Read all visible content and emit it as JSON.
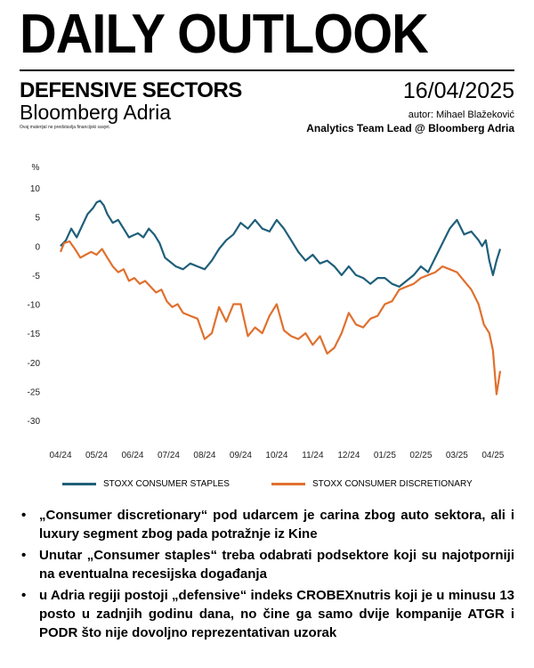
{
  "header": {
    "title": "DAILY OUTLOOK",
    "sector": "DEFENSIVE SECTORS",
    "brand": "Bloomberg Adria",
    "disclaimer": "Ovaj materijal ne predstavlja financijski savjet.",
    "date": "16/04/2025",
    "author": "autor: Mihael Blažeković",
    "role": "Analytics Team Lead @ Bloomberg Adria"
  },
  "legend": {
    "staples": "STOXX CONSUMER STAPLES",
    "discretionary": "STOXX CONSUMER DISCRETIONARY"
  },
  "bullets": [
    "„Consumer discretionary“ pod udarcem je carina zbog auto sektora, ali i luxury segment zbog pada potražnje iz Kine",
    "Unutar „Consumer staples“ treba odabrati podsektore koji su najotporniji na eventualna recesijska događanja",
    "u Adria regiji postoji „defensive“ indeks CROBEXnutris koji je u minusu 13 posto u zadnjih godinu dana, no čine ga samo dvije kompanije ATGR i PODR što nije dovoljno reprezentativan uzorak"
  ],
  "chart_data": {
    "type": "line",
    "ylabel": "%",
    "ylim": [
      -30,
      10
    ],
    "yticks": [
      10,
      5,
      0,
      -5,
      -10,
      -15,
      -20,
      -25,
      -30
    ],
    "xlim": [
      0,
      12.3
    ],
    "xticks": [
      "04/24",
      "05/24",
      "06/24",
      "07/24",
      "08/24",
      "09/24",
      "10/24",
      "11/24",
      "12/24",
      "01/25",
      "02/25",
      "03/25",
      "04/25"
    ],
    "colors": {
      "staples": "#1f5f7a",
      "discretionary": "#e0702e"
    },
    "series": [
      {
        "name": "STOXX CONSUMER STAPLES",
        "x": [
          0,
          0.15,
          0.3,
          0.45,
          0.6,
          0.75,
          0.9,
          1.0,
          1.1,
          1.2,
          1.3,
          1.45,
          1.6,
          1.75,
          1.9,
          2.0,
          2.15,
          2.3,
          2.45,
          2.6,
          2.75,
          2.9,
          3.0,
          3.2,
          3.4,
          3.6,
          3.8,
          4.0,
          4.2,
          4.4,
          4.6,
          4.8,
          5.0,
          5.2,
          5.4,
          5.6,
          5.8,
          6.0,
          6.2,
          6.4,
          6.6,
          6.8,
          7.0,
          7.2,
          7.4,
          7.6,
          7.8,
          8.0,
          8.2,
          8.4,
          8.6,
          8.8,
          9.0,
          9.2,
          9.4,
          9.6,
          9.8,
          10.0,
          10.2,
          10.4,
          10.6,
          10.8,
          11.0,
          11.2,
          11.4,
          11.6,
          11.7,
          11.8,
          11.9,
          12.0,
          12.1,
          12.2
        ],
        "y": [
          0,
          1,
          3,
          1.5,
          3.5,
          5.5,
          6.5,
          7.5,
          7.8,
          7,
          5.5,
          4,
          4.5,
          3,
          1.5,
          1.8,
          2.2,
          1.5,
          3,
          2,
          0.5,
          -2,
          -2.5,
          -3.5,
          -4,
          -3,
          -3.5,
          -4,
          -2.5,
          -0.5,
          1,
          2,
          4,
          3,
          4.5,
          3,
          2.5,
          4.5,
          3,
          1,
          -1,
          -2.5,
          -1.5,
          -3,
          -2.5,
          -3.5,
          -5,
          -3.5,
          -5,
          -5.5,
          -6.5,
          -5.5,
          -5.5,
          -6.5,
          -7,
          -6,
          -5,
          -3.5,
          -4.5,
          -2,
          0.5,
          3,
          4.5,
          2,
          2.5,
          1,
          0,
          1,
          -2.5,
          -5,
          -2.5,
          -0.5
        ]
      },
      {
        "name": "STOXX CONSUMER DISCRETIONARY",
        "x": [
          0,
          0.1,
          0.25,
          0.4,
          0.55,
          0.7,
          0.85,
          1.0,
          1.15,
          1.3,
          1.45,
          1.6,
          1.75,
          1.9,
          2.05,
          2.2,
          2.35,
          2.5,
          2.65,
          2.8,
          2.95,
          3.1,
          3.25,
          3.4,
          3.6,
          3.8,
          4.0,
          4.2,
          4.4,
          4.6,
          4.8,
          5.0,
          5.2,
          5.4,
          5.6,
          5.8,
          6.0,
          6.2,
          6.4,
          6.6,
          6.8,
          7.0,
          7.2,
          7.4,
          7.6,
          7.8,
          8.0,
          8.2,
          8.4,
          8.6,
          8.8,
          9.0,
          9.2,
          9.4,
          9.6,
          9.8,
          10.0,
          10.2,
          10.4,
          10.6,
          10.8,
          11.0,
          11.2,
          11.4,
          11.6,
          11.75,
          11.9,
          12.0,
          12.1,
          12.2
        ],
        "y": [
          -1,
          0.5,
          0.8,
          -0.5,
          -2,
          -1.5,
          -1,
          -1.5,
          -0.5,
          -2,
          -3.5,
          -4.5,
          -4,
          -6,
          -5.5,
          -6.5,
          -6,
          -7,
          -8,
          -7.5,
          -9.5,
          -10.5,
          -10,
          -11.5,
          -12,
          -12.5,
          -16,
          -15,
          -10.5,
          -13,
          -10,
          -10,
          -15.5,
          -14,
          -15,
          -12,
          -10,
          -14.5,
          -15.5,
          -16,
          -15,
          -17,
          -15.5,
          -18.5,
          -17.5,
          -15,
          -11.5,
          -13.5,
          -14,
          -12.5,
          -12,
          -10,
          -9.5,
          -7.5,
          -7,
          -6.5,
          -5.5,
          -5,
          -4.5,
          -3.5,
          -4,
          -4.5,
          -6,
          -7.5,
          -10,
          -13.5,
          -15,
          -18,
          -25.5,
          -21.5
        ]
      }
    ]
  }
}
